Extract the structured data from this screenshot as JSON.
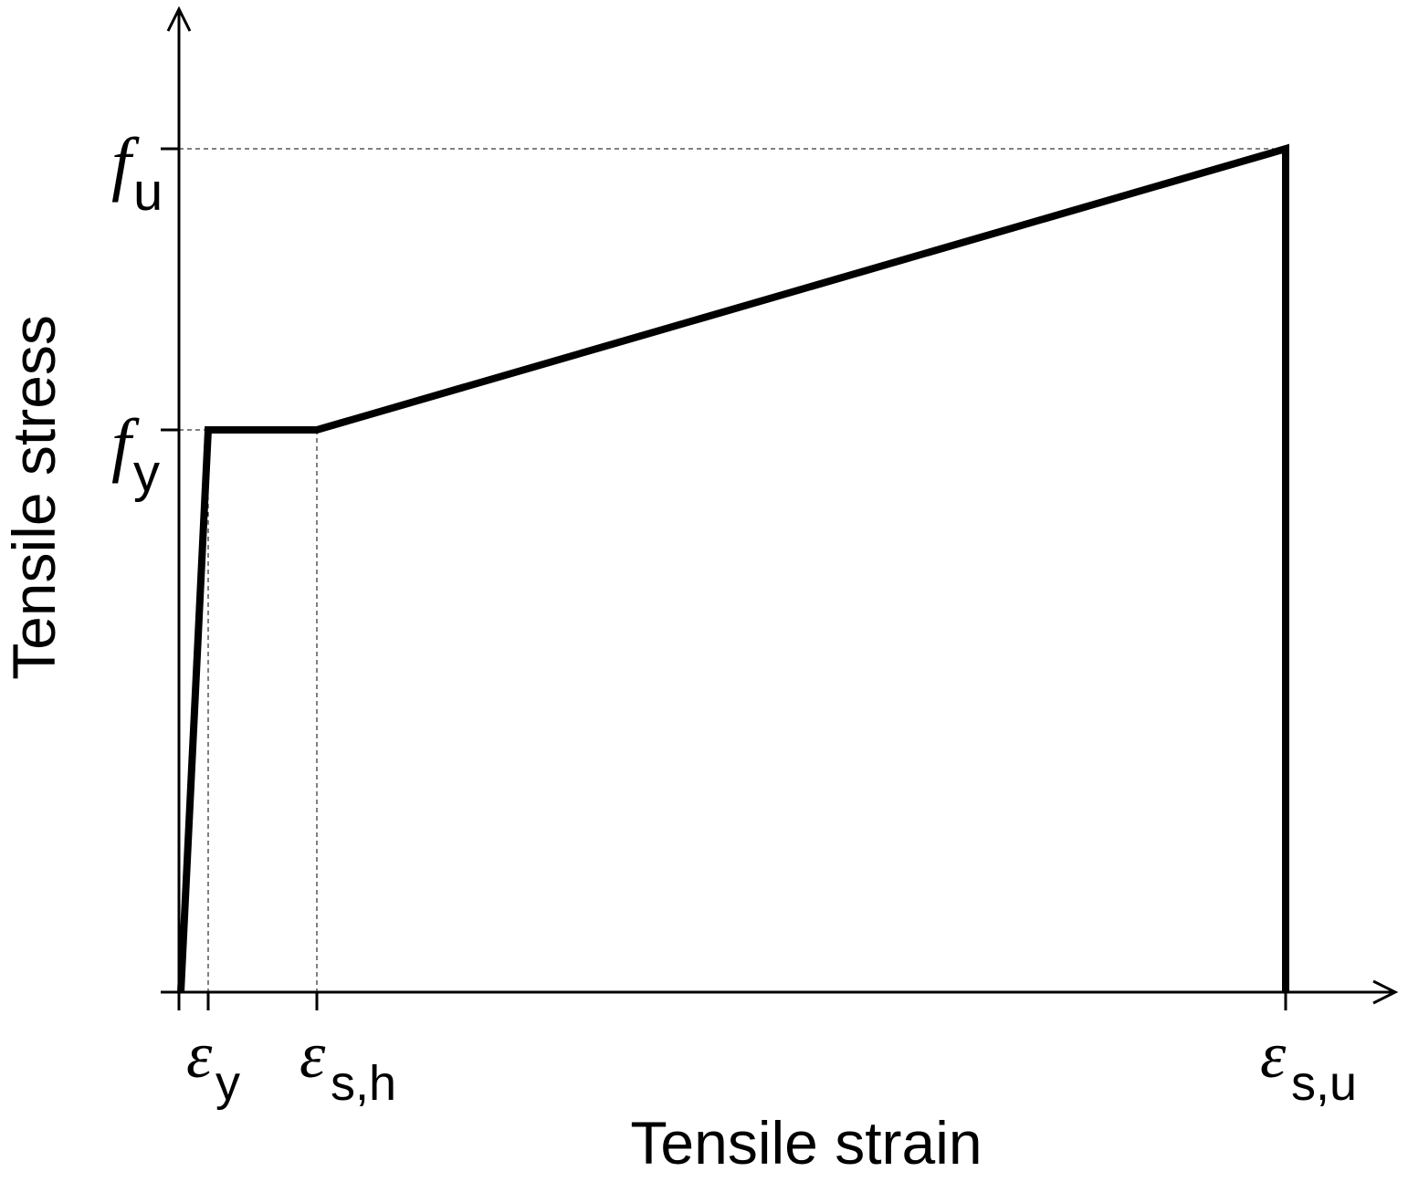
{
  "axes": {
    "x_title": "Tensile strain",
    "y_title": "Tensile stress"
  },
  "y_labels": [
    {
      "symbol": "f",
      "subscript": "u"
    },
    {
      "symbol": "f",
      "subscript": "y"
    }
  ],
  "x_labels": [
    {
      "symbol": "ε",
      "subscript": "y"
    },
    {
      "symbol": "ε",
      "subscript": "s,h"
    },
    {
      "symbol": "ε",
      "subscript": "s,u"
    }
  ]
}
